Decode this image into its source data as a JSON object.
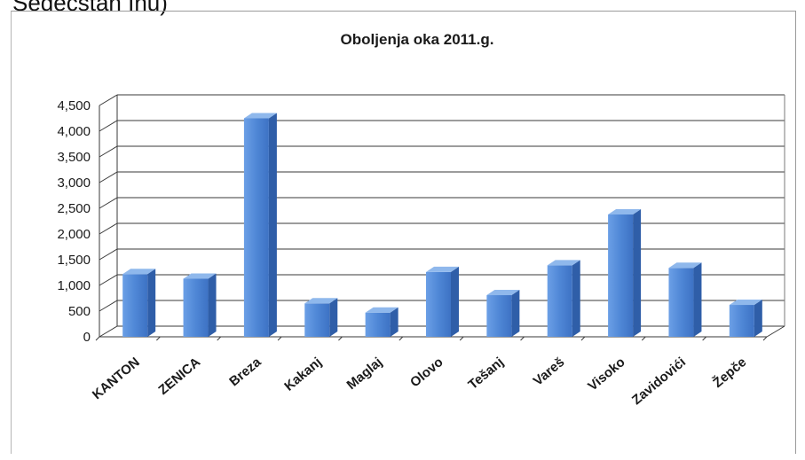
{
  "page": {
    "top_fragment": "Sedecstan Inu)"
  },
  "chart_data": {
    "type": "bar",
    "title": "Oboljenja oka 2011.g.",
    "xlabel": "",
    "ylabel": "",
    "categories": [
      "KANTON",
      "ZENICA",
      "Breza",
      "Kakanj",
      "Maglaj",
      "Olovo",
      "Tešanj",
      "Vareš",
      "Visoko",
      "Zavidovići",
      "Žepče"
    ],
    "values": [
      1220,
      1130,
      4250,
      650,
      470,
      1260,
      810,
      1390,
      2380,
      1340,
      620
    ],
    "ylim": [
      0,
      4500
    ],
    "yticks": [
      "0",
      "500",
      "1,000",
      "1,500",
      "2,000",
      "2,500",
      "3,000",
      "3,500",
      "4,000",
      "4,500"
    ],
    "grid": true,
    "legend": "none",
    "style": "3d-column",
    "colors": {
      "bar_front": "#4f87d6",
      "bar_side": "#2f5ea8",
      "bar_top": "#8fb8ec",
      "grid": "#3a3a3a"
    }
  }
}
